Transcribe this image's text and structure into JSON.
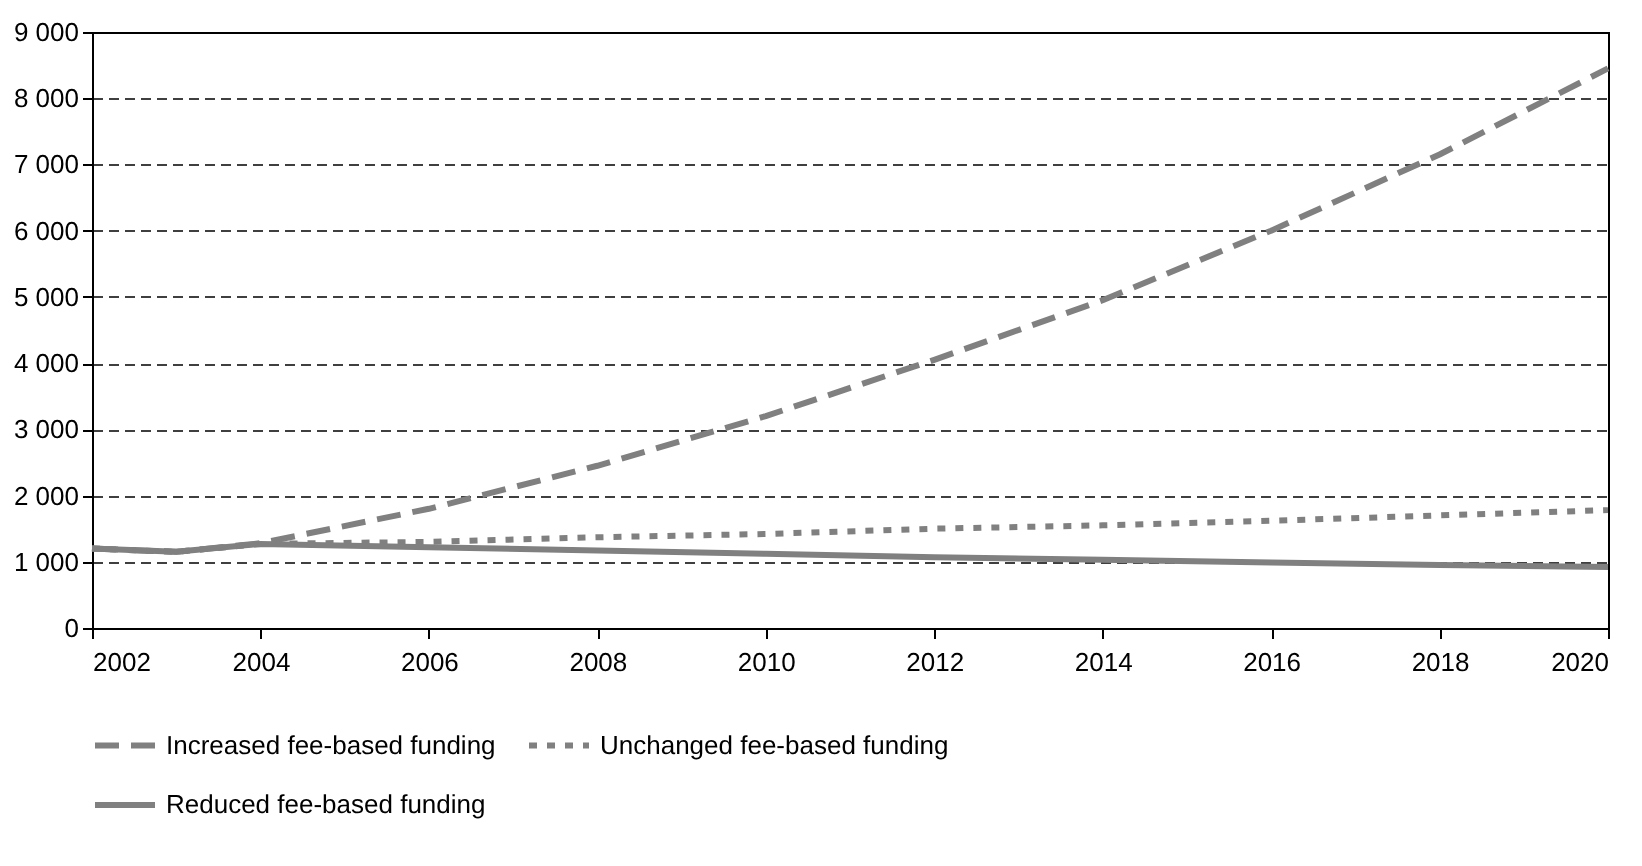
{
  "chart_data": {
    "type": "line",
    "x": [
      2002,
      2003,
      2004,
      2006,
      2008,
      2010,
      2012,
      2014,
      2016,
      2018,
      2020
    ],
    "series": [
      {
        "name": "Increased fee-based funding",
        "color": "#808080",
        "line_style": "dashed",
        "values": [
          1200,
          1150,
          1280,
          1800,
          2450,
          3200,
          4050,
          4950,
          6000,
          7150,
          8450
        ]
      },
      {
        "name": "Unchanged fee-based funding",
        "color": "#808080",
        "line_style": "dotted",
        "values": [
          1200,
          1150,
          1270,
          1300,
          1370,
          1420,
          1500,
          1550,
          1620,
          1700,
          1780
        ]
      },
      {
        "name": "Reduced fee-based funding",
        "color": "#808080",
        "line_style": "solid",
        "values": [
          1200,
          1150,
          1270,
          1220,
          1170,
          1120,
          1070,
          1030,
          990,
          950,
          920
        ]
      }
    ],
    "xlim": [
      2002,
      2020
    ],
    "xticks": [
      2002,
      2004,
      2006,
      2008,
      2010,
      2012,
      2014,
      2016,
      2018,
      2020
    ],
    "ylim": [
      0,
      9000
    ],
    "yticks": [
      0,
      {
        "value": 1000,
        "label": "1 000"
      },
      {
        "value": 2000,
        "label": "2 000"
      },
      {
        "value": 3000,
        "label": "3 000"
      },
      {
        "value": 4000,
        "label": "4 000"
      },
      {
        "value": 5000,
        "label": "5 000"
      },
      {
        "value": 6000,
        "label": "6 000"
      },
      {
        "value": 7000,
        "label": "7 000"
      },
      {
        "value": 8000,
        "label": "8 000"
      },
      {
        "value": 9000,
        "label": "9 000"
      }
    ],
    "grid": "y",
    "legend": "bottom",
    "marker": "none"
  }
}
